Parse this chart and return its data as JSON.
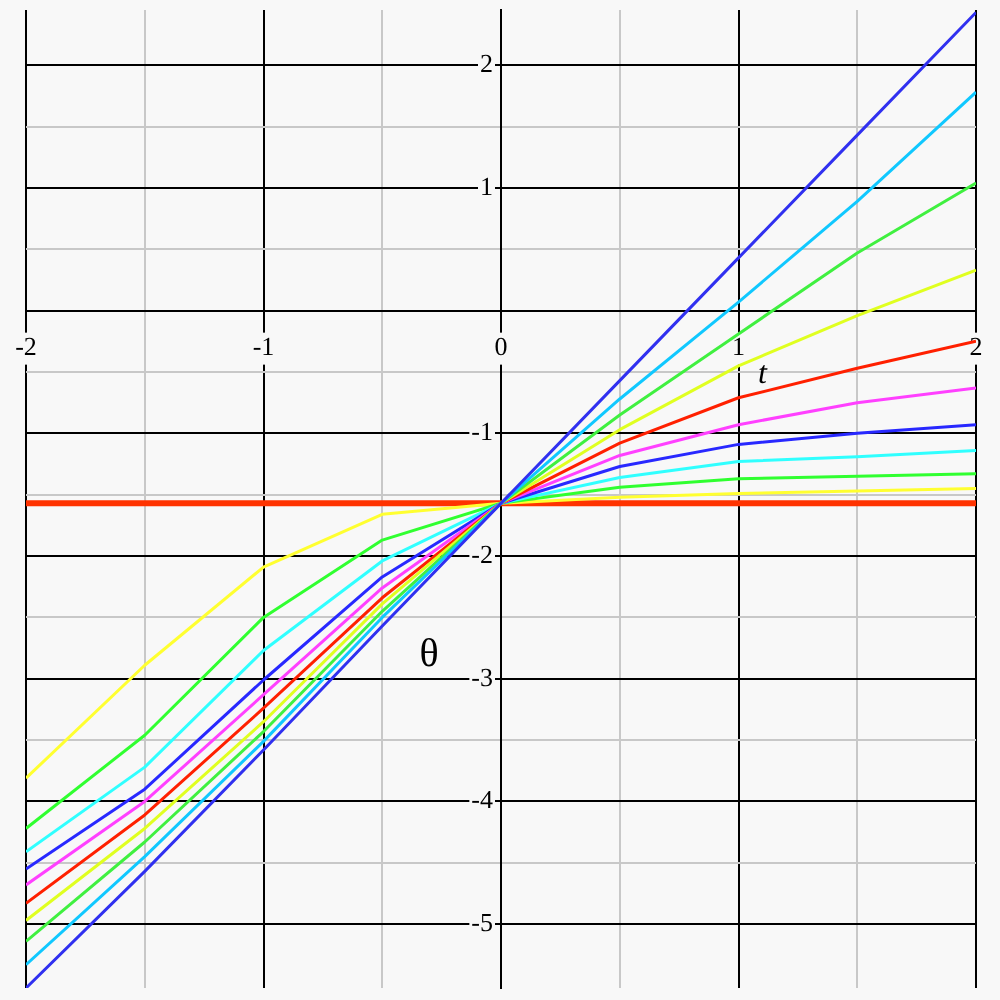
{
  "chart_data": {
    "type": "line",
    "xlabel": "t",
    "ylabel": "θ",
    "x": [
      -2,
      -1.5,
      -1,
      -0.5,
      0,
      0.5,
      1,
      1.5,
      2
    ],
    "xlim": [
      -2,
      2
    ],
    "ylim": [
      -5.52,
      2.45
    ],
    "xticks": [
      -2,
      {
        "value": -1.5,
        "label": null
      },
      -1,
      {
        "value": -0.5,
        "label": null
      },
      0,
      {
        "value": 0.5,
        "label": null
      },
      1,
      {
        "value": 1.5,
        "label": null
      },
      2
    ],
    "yticks": [
      -5,
      {
        "value": -4.5,
        "label": null
      },
      -4,
      {
        "value": -3.5,
        "label": null
      },
      -3,
      {
        "value": -2.5,
        "label": null
      },
      -2,
      {
        "value": -1.5,
        "label": null
      },
      -1,
      {
        "value": -0.5,
        "label": null
      },
      {
        "value": 0,
        "label": null
      },
      {
        "value": 0.5,
        "label": null
      },
      1,
      {
        "value": 1.5,
        "label": null
      },
      2
    ],
    "grid": true,
    "marker": "none",
    "line_style": "solid",
    "series": [
      {
        "color": "#3030f0",
        "values": [
          -5.52,
          -4.57,
          -3.58,
          -2.57,
          -1.57,
          -0.57,
          0.43,
          1.43,
          2.43
        ]
      },
      {
        "color": "#10c8ff",
        "values": [
          -5.33,
          -4.45,
          -3.51,
          -2.5,
          -1.57,
          -0.72,
          0.07,
          0.89,
          1.78
        ]
      },
      {
        "color": "#40f040",
        "values": [
          -5.14,
          -4.33,
          -3.43,
          -2.45,
          -1.57,
          -0.85,
          -0.19,
          0.47,
          1.04
        ]
      },
      {
        "color": "#e0ff20",
        "values": [
          -4.97,
          -4.22,
          -3.35,
          -2.39,
          -1.57,
          -0.97,
          -0.45,
          -0.04,
          0.33
        ]
      },
      {
        "color": "#ff2000",
        "values": [
          -4.83,
          -4.11,
          -3.24,
          -2.34,
          -1.57,
          -1.08,
          -0.71,
          -0.47,
          -0.25
        ]
      },
      {
        "color": "#ff40ff",
        "values": [
          -4.68,
          -4.0,
          -3.13,
          -2.26,
          -1.57,
          -1.18,
          -0.93,
          -0.75,
          -0.63
        ]
      },
      {
        "color": "#2828ff",
        "values": [
          -4.55,
          -3.9,
          -3.01,
          -2.17,
          -1.57,
          -1.27,
          -1.09,
          -1.0,
          -0.93
        ]
      },
      {
        "color": "#30ffff",
        "values": [
          -4.41,
          -3.72,
          -2.77,
          -2.04,
          -1.57,
          -1.36,
          -1.23,
          -1.19,
          -1.14
        ]
      },
      {
        "color": "#30ff30",
        "values": [
          -4.22,
          -3.46,
          -2.5,
          -1.87,
          -1.57,
          -1.44,
          -1.37,
          -1.35,
          -1.33
        ]
      },
      {
        "color": "#ffff30",
        "values": [
          -3.81,
          -2.89,
          -2.09,
          -1.66,
          -1.57,
          -1.52,
          -1.49,
          -1.47,
          -1.45
        ]
      },
      {
        "color": "#ff3300",
        "values": [
          -1.57,
          -1.57,
          -1.57,
          -1.57,
          -1.57,
          -1.57,
          -1.57,
          -1.57,
          -1.57
        ]
      }
    ]
  }
}
